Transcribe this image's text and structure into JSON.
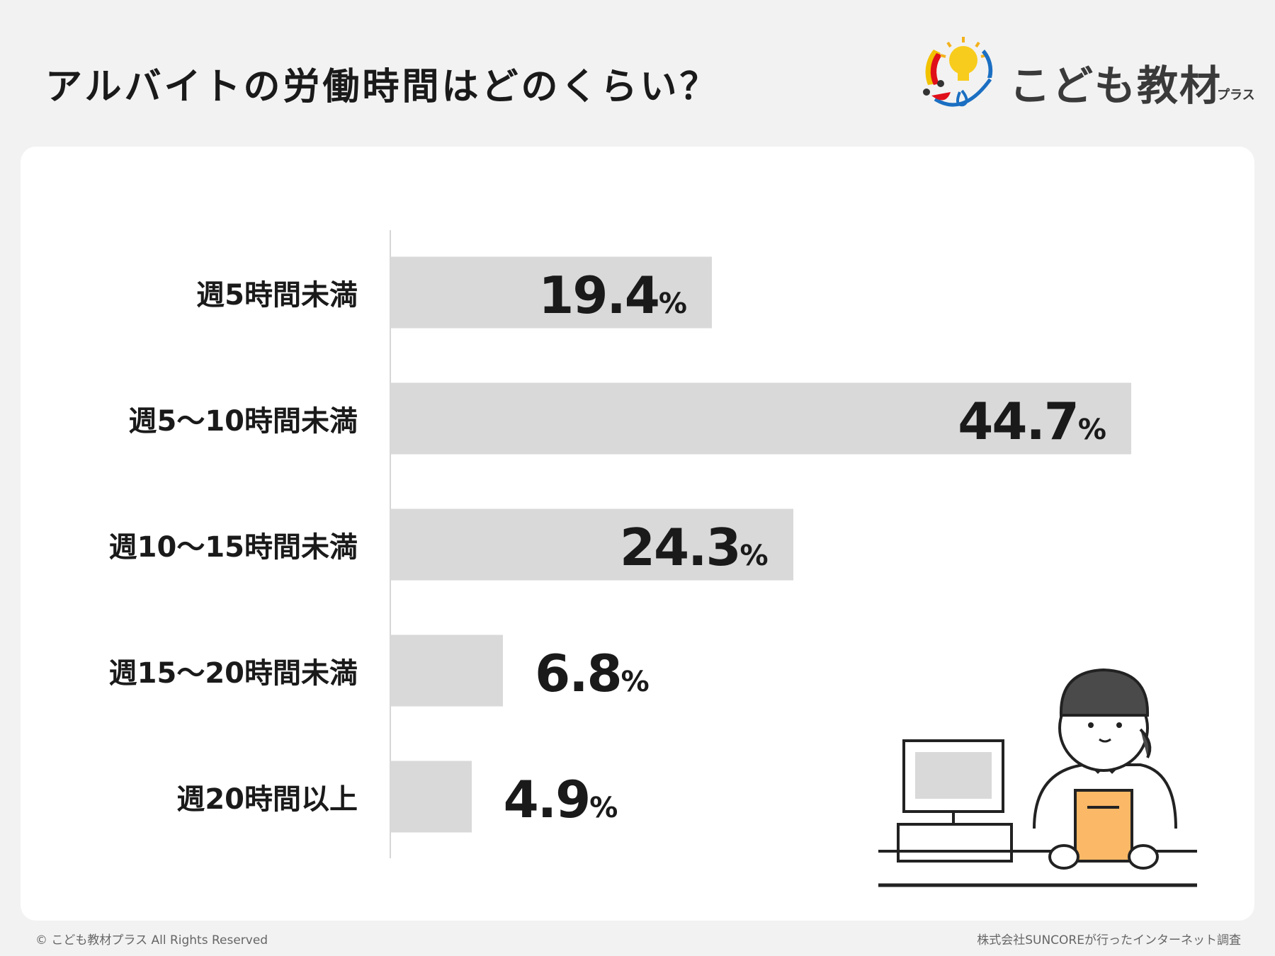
{
  "title": "アルバイトの労働時間はどのくらい？",
  "logo": {
    "text": "こども教材",
    "sub": "プラス"
  },
  "chart_data": {
    "type": "bar",
    "orientation": "horizontal",
    "categories": [
      "週5時間未満",
      "週5〜10時間未満",
      "週10〜15時間未満",
      "週15〜20時間未満",
      "週20時間以上"
    ],
    "values": [
      19.4,
      44.7,
      24.3,
      6.8,
      4.9
    ],
    "unit": "%",
    "bar_color": "#d9d9d9",
    "grid": false
  },
  "footer": {
    "left": "© こども教材プラス All Rights Reserved",
    "right": "株式会社SUNCOREが行ったインターネット調査"
  }
}
